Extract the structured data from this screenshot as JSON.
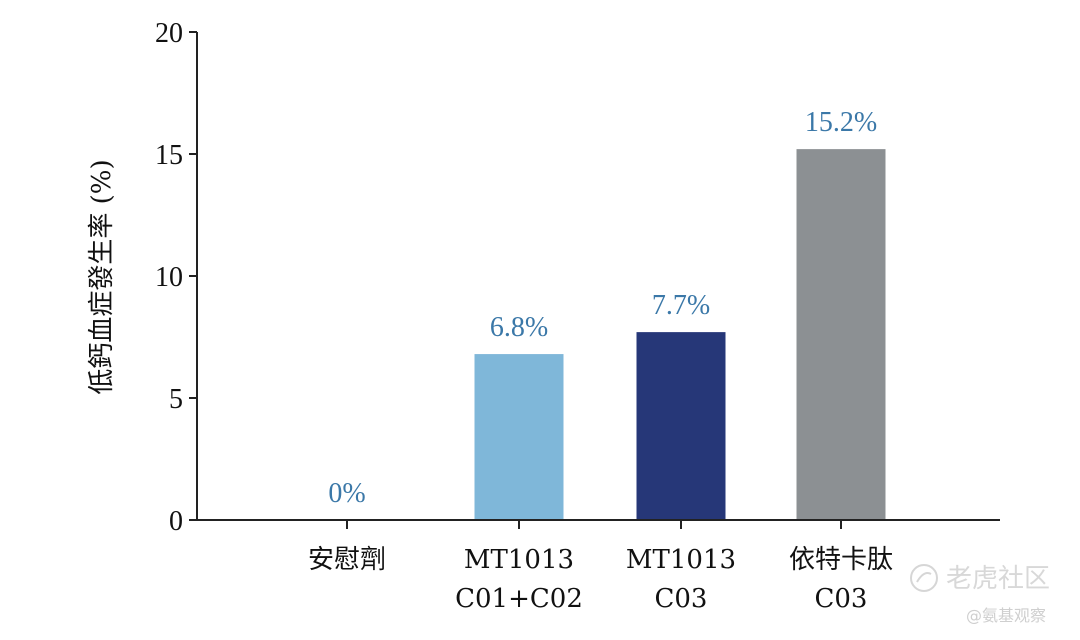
{
  "chart_data": {
    "type": "bar",
    "categories": [
      [
        "安慰劑"
      ],
      [
        "MT1013",
        "C01+C02"
      ],
      [
        "MT1013",
        "C03"
      ],
      [
        "依特卡肽",
        "C03"
      ]
    ],
    "values": [
      0,
      6.8,
      7.7,
      15.2
    ],
    "data_labels": [
      "0%",
      "6.8%",
      "7.7%",
      "15.2%"
    ],
    "colors": [
      "#7fb7d9",
      "#7fb7d9",
      "#263778",
      "#8c9093"
    ],
    "label_color": "#3b78a8",
    "ylabel": "低鈣血症發生率 (%)",
    "ylim": [
      0,
      20
    ],
    "yticks": [
      0,
      5,
      10,
      15,
      20
    ],
    "grid": false,
    "legend": "none"
  },
  "watermark": {
    "main": "老虎社区",
    "sub": "@氨基观察"
  }
}
